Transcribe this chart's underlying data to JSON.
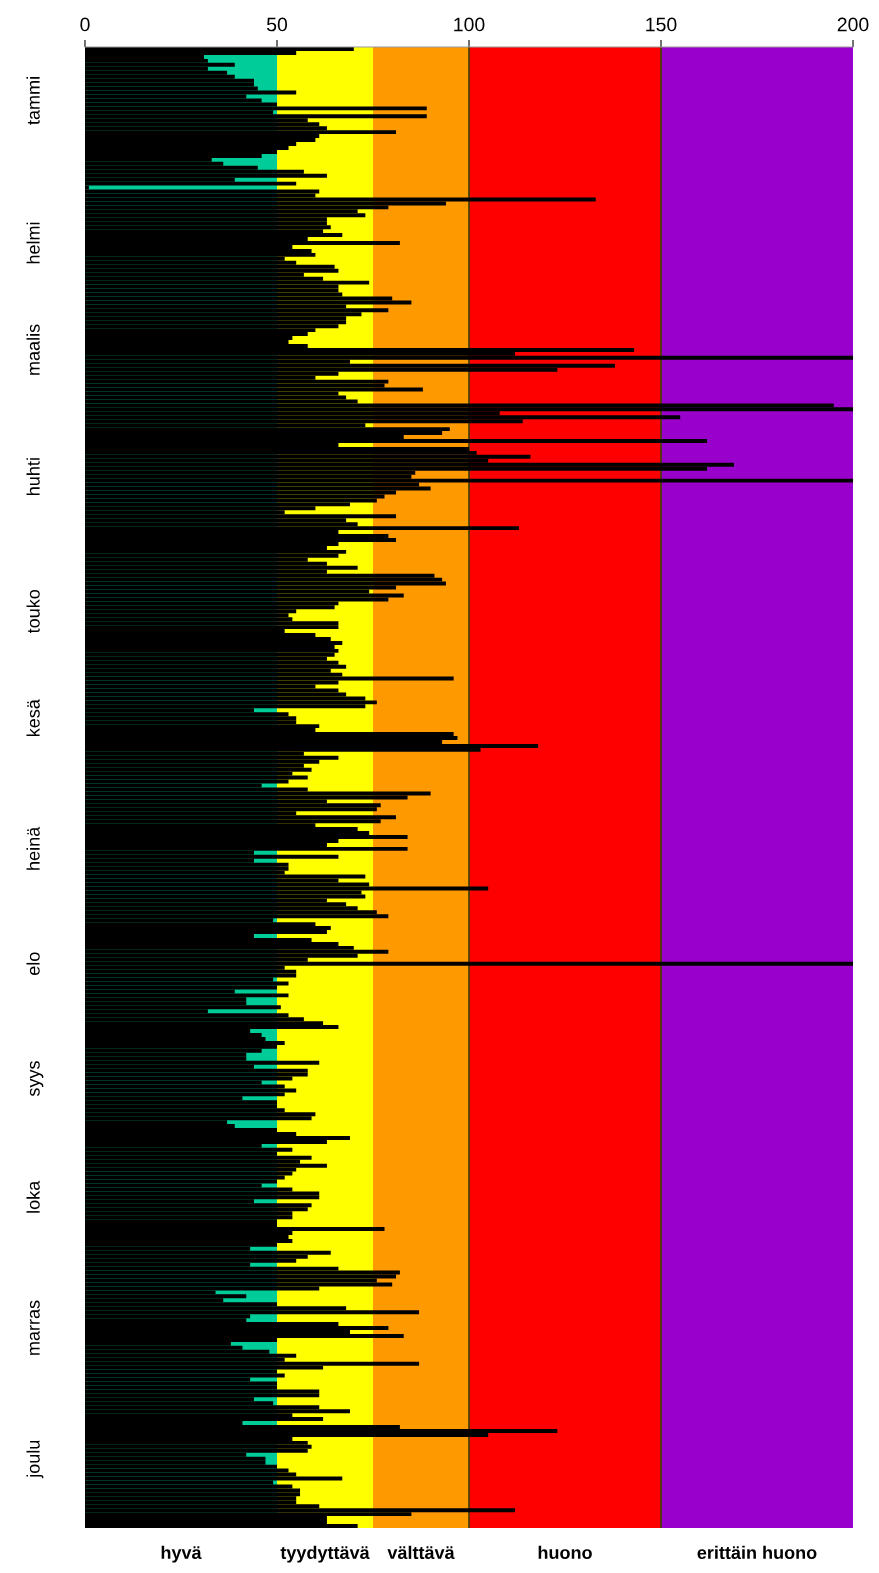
{
  "chart_data": {
    "type": "bar",
    "orientation": "horizontal",
    "color": "#000000",
    "categories": [
      null,
      null,
      null,
      null,
      null,
      null,
      null,
      null,
      null,
      null,
      null,
      null,
      null,
      "tammi",
      null,
      null,
      null,
      null,
      null,
      null,
      null,
      null,
      null,
      null,
      null,
      null,
      null,
      null,
      null,
      null,
      null,
      null,
      null,
      null,
      null,
      null,
      null,
      null,
      null,
      null,
      null,
      null,
      null,
      null,
      null,
      null,
      null,
      null,
      null,
      "helmi",
      null,
      null,
      null,
      null,
      null,
      null,
      null,
      null,
      null,
      null,
      null,
      null,
      null,
      null,
      null,
      null,
      null,
      null,
      null,
      null,
      null,
      null,
      null,
      null,
      null,
      null,
      "maalis",
      null,
      null,
      null,
      null,
      null,
      null,
      null,
      null,
      null,
      null,
      null,
      null,
      null,
      null,
      null,
      null,
      null,
      null,
      null,
      null,
      null,
      null,
      null,
      null,
      null,
      null,
      null,
      null,
      null,
      null,
      null,
      "huhti",
      null,
      null,
      null,
      null,
      null,
      null,
      null,
      null,
      null,
      null,
      null,
      null,
      null,
      null,
      null,
      null,
      null,
      null,
      null,
      null,
      null,
      null,
      null,
      null,
      null,
      null,
      null,
      null,
      null,
      null,
      null,
      null,
      null,
      "touko",
      null,
      null,
      null,
      null,
      null,
      null,
      null,
      null,
      null,
      null,
      null,
      null,
      null,
      null,
      null,
      null,
      null,
      null,
      null,
      null,
      null,
      null,
      null,
      null,
      null,
      null,
      "kesä",
      null,
      null,
      null,
      null,
      null,
      null,
      null,
      null,
      null,
      null,
      null,
      null,
      null,
      null,
      null,
      null,
      null,
      null,
      null,
      null,
      null,
      null,
      null,
      null,
      null,
      null,
      null,
      null,
      null,
      null,
      null,
      null,
      "heinä",
      null,
      null,
      null,
      null,
      null,
      null,
      null,
      null,
      null,
      null,
      null,
      null,
      null,
      null,
      null,
      null,
      null,
      null,
      null,
      null,
      null,
      null,
      null,
      null,
      null,
      null,
      null,
      null,
      "elo",
      null,
      null,
      null,
      null,
      null,
      null,
      null,
      null,
      null,
      null,
      null,
      null,
      null,
      null,
      null,
      null,
      null,
      null,
      null,
      null,
      null,
      null,
      null,
      null,
      null,
      null,
      null,
      null,
      "syys",
      null,
      null,
      null,
      null,
      null,
      null,
      null,
      null,
      null,
      null,
      null,
      null,
      null,
      null,
      null,
      null,
      null,
      null,
      null,
      null,
      null,
      null,
      null,
      null,
      null,
      null,
      null,
      null,
      null,
      "loka",
      null,
      null,
      null,
      null,
      null,
      null,
      null,
      null,
      null,
      null,
      null,
      null,
      null,
      null,
      null,
      null,
      null,
      null,
      null,
      null,
      null,
      null,
      null,
      null,
      null,
      null,
      null,
      null,
      null,
      null,
      null,
      null,
      "marras",
      null,
      null,
      null,
      null,
      null,
      null,
      null,
      null,
      null,
      null,
      null,
      null,
      null,
      null,
      null,
      null,
      null,
      null,
      null,
      null,
      null,
      null,
      null,
      null,
      null,
      null,
      null,
      null,
      null,
      null,
      null,
      null,
      "joulu",
      null,
      null,
      null,
      null,
      null,
      null,
      null,
      null,
      null,
      null,
      null,
      null,
      null,
      null,
      null,
      null,
      null
    ],
    "values": [
      70,
      55,
      31,
      32,
      39,
      32,
      37,
      39,
      44,
      44,
      45,
      55,
      42,
      46,
      50,
      89,
      49,
      89,
      58,
      61,
      63,
      81,
      61,
      60,
      55,
      53,
      50,
      46,
      33,
      36,
      45,
      57,
      63,
      39,
      55,
      1,
      61,
      60,
      133,
      94,
      79,
      71,
      73,
      63,
      63,
      64,
      62,
      67,
      58,
      82,
      54,
      59,
      60,
      52,
      55,
      65,
      66,
      57,
      62,
      74,
      66,
      66,
      67,
      80,
      85,
      68,
      79,
      72,
      68,
      68,
      66,
      60,
      58,
      54,
      53,
      58,
      143,
      112,
      200,
      69,
      138,
      123,
      66,
      60,
      79,
      78,
      88,
      66,
      68,
      71,
      195,
      200,
      108,
      155,
      114,
      73,
      95,
      93,
      83,
      162,
      66,
      100,
      102,
      116,
      105,
      169,
      162,
      86,
      85,
      200,
      87,
      90,
      81,
      78,
      76,
      69,
      60,
      52,
      81,
      68,
      71,
      113,
      66,
      79,
      81,
      66,
      63,
      68,
      66,
      58,
      63,
      71,
      63,
      91,
      93,
      94,
      81,
      74,
      83,
      79,
      66,
      65,
      55,
      53,
      54,
      66,
      66,
      52,
      60,
      64,
      67,
      65,
      66,
      65,
      63,
      66,
      68,
      64,
      67,
      96,
      66,
      60,
      66,
      68,
      73,
      76,
      73,
      44,
      53,
      55,
      55,
      61,
      60,
      96,
      97,
      93,
      118,
      103,
      57,
      66,
      61,
      57,
      59,
      54,
      58,
      53,
      46,
      58,
      90,
      84,
      63,
      77,
      76,
      55,
      81,
      77,
      60,
      71,
      74,
      84,
      66,
      63,
      84,
      44,
      66,
      44,
      53,
      53,
      52,
      73,
      66,
      74,
      105,
      72,
      73,
      63,
      68,
      71,
      76,
      79,
      49,
      60,
      64,
      63,
      44,
      59,
      66,
      70,
      79,
      71,
      58,
      200,
      52,
      55,
      55,
      49,
      53,
      50,
      39,
      53,
      42,
      42,
      51,
      32,
      53,
      57,
      62,
      66,
      43,
      46,
      47,
      52,
      50,
      46,
      42,
      42,
      61,
      44,
      58,
      58,
      54,
      46,
      52,
      55,
      52,
      41,
      50,
      50,
      52,
      60,
      59,
      37,
      39,
      50,
      55,
      69,
      63,
      46,
      54,
      50,
      59,
      56,
      63,
      55,
      54,
      52,
      50,
      46,
      54,
      61,
      61,
      44,
      59,
      58,
      54,
      54,
      50,
      50,
      78,
      54,
      53,
      54,
      50,
      43,
      64,
      58,
      55,
      43,
      66,
      82,
      81,
      76,
      80,
      61,
      34,
      42,
      36,
      50,
      68,
      87,
      43,
      42,
      66,
      79,
      69,
      83,
      50,
      38,
      41,
      48,
      55,
      52,
      87,
      62,
      50,
      52,
      43,
      50,
      50,
      61,
      61,
      44,
      49,
      61,
      69,
      54,
      62,
      41,
      82,
      123,
      105,
      54,
      58,
      59,
      58,
      42,
      47,
      47,
      50,
      53,
      55,
      67,
      49,
      54,
      56,
      56,
      55,
      55,
      61,
      112,
      85,
      63,
      63,
      71
    ],
    "xlim": [
      0,
      200
    ],
    "xticks": [
      0,
      50,
      100,
      150,
      200
    ],
    "grid": false,
    "legend": false,
    "bands": [
      {
        "axis": "x",
        "from": 0,
        "to": 50,
        "label": "hyvä",
        "color": "#00cc99"
      },
      {
        "axis": "x",
        "from": 50,
        "to": 75,
        "label": "tyydyttävä",
        "color": "#ffff00"
      },
      {
        "axis": "x",
        "from": 75,
        "to": 100,
        "label": "välttävä",
        "color": "#ff9900"
      },
      {
        "axis": "x",
        "from": 100,
        "to": 150,
        "label": "huono",
        "color": "#ff0000"
      },
      {
        "axis": "x",
        "from": 150,
        "to": 200,
        "label": "erittäin huono",
        "color": "#9900cc"
      }
    ],
    "ref_lines": [
      {
        "axis": "x",
        "value": 100,
        "color": "#404000"
      },
      {
        "axis": "x",
        "value": 150,
        "color": "#404000"
      }
    ]
  }
}
